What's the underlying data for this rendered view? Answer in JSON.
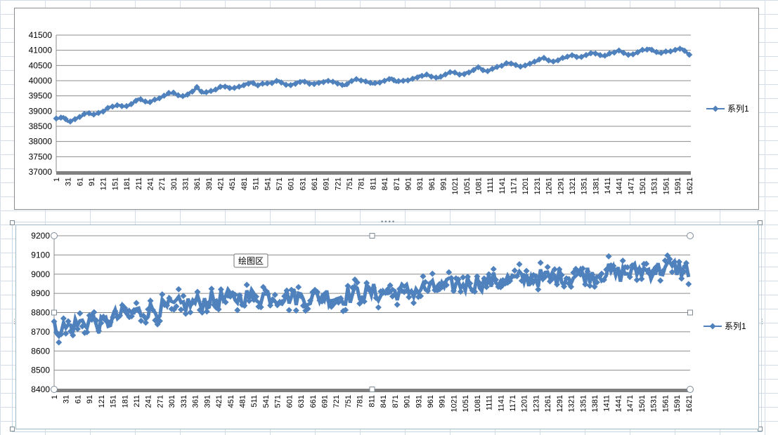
{
  "sheet": {
    "grid_color": "#d6dde8"
  },
  "tooltip": {
    "text": "绘图区"
  },
  "chart_data": [
    {
      "type": "line",
      "title": "",
      "xlabel": "",
      "ylabel": "",
      "x_tick_labels": [
        "1",
        "31",
        "61",
        "91",
        "121",
        "151",
        "181",
        "211",
        "241",
        "271",
        "301",
        "331",
        "361",
        "391",
        "421",
        "451",
        "481",
        "511",
        "541",
        "571",
        "601",
        "631",
        "661",
        "691",
        "721",
        "751",
        "781",
        "811",
        "841",
        "871",
        "901",
        "931",
        "961",
        "991",
        "1021",
        "1051",
        "1081",
        "1111",
        "1141",
        "1171",
        "1201",
        "1231",
        "1261",
        "1291",
        "1321",
        "1351",
        "1381",
        "1411",
        "1441",
        "1471",
        "1501",
        "1531",
        "1561",
        "1591",
        "1621"
      ],
      "ylim": [
        37000,
        41500
      ],
      "y_ticks": [
        37000,
        37500,
        38000,
        38500,
        39000,
        39500,
        40000,
        40500,
        41000,
        41500
      ],
      "grid": true,
      "legend_position": "right",
      "marker": "diamond",
      "series_color": "#4f81bd",
      "series": [
        {
          "name": "系列1",
          "points": [
            [
              1,
              38750
            ],
            [
              20,
              38800
            ],
            [
              31,
              38650
            ],
            [
              45,
              38700
            ],
            [
              61,
              38800
            ],
            [
              80,
              38950
            ],
            [
              91,
              38900
            ],
            [
              105,
              38900
            ],
            [
              121,
              39000
            ],
            [
              140,
              39150
            ],
            [
              160,
              39180
            ],
            [
              181,
              39150
            ],
            [
              200,
              39300
            ],
            [
              211,
              39400
            ],
            [
              230,
              39300
            ],
            [
              241,
              39300
            ],
            [
              260,
              39400
            ],
            [
              271,
              39450
            ],
            [
              290,
              39600
            ],
            [
              301,
              39600
            ],
            [
              315,
              39500
            ],
            [
              331,
              39500
            ],
            [
              350,
              39650
            ],
            [
              361,
              39800
            ],
            [
              375,
              39600
            ],
            [
              391,
              39650
            ],
            [
              410,
              39700
            ],
            [
              421,
              39800
            ],
            [
              440,
              39800
            ],
            [
              451,
              39750
            ],
            [
              470,
              39800
            ],
            [
              481,
              39850
            ],
            [
              500,
              39950
            ],
            [
              511,
              39850
            ],
            [
              530,
              39900
            ],
            [
              541,
              39900
            ],
            [
              560,
              39950
            ],
            [
              571,
              40000
            ],
            [
              590,
              39850
            ],
            [
              601,
              39850
            ],
            [
              620,
              39950
            ],
            [
              631,
              40000
            ],
            [
              650,
              39900
            ],
            [
              661,
              39900
            ],
            [
              680,
              39950
            ],
            [
              691,
              40000
            ],
            [
              710,
              39950
            ],
            [
              721,
              39900
            ],
            [
              740,
              39850
            ],
            [
              751,
              39950
            ],
            [
              770,
              40050
            ],
            [
              781,
              40000
            ],
            [
              800,
              39950
            ],
            [
              811,
              39900
            ],
            [
              830,
              39950
            ],
            [
              841,
              40000
            ],
            [
              860,
              40100
            ],
            [
              871,
              39950
            ],
            [
              890,
              40000
            ],
            [
              901,
              40000
            ],
            [
              920,
              40100
            ],
            [
              931,
              40150
            ],
            [
              950,
              40200
            ],
            [
              961,
              40150
            ],
            [
              980,
              40100
            ],
            [
              991,
              40150
            ],
            [
              1010,
              40300
            ],
            [
              1021,
              40250
            ],
            [
              1040,
              40200
            ],
            [
              1051,
              40250
            ],
            [
              1070,
              40350
            ],
            [
              1081,
              40450
            ],
            [
              1100,
              40300
            ],
            [
              1111,
              40350
            ],
            [
              1130,
              40450
            ],
            [
              1141,
              40500
            ],
            [
              1160,
              40600
            ],
            [
              1171,
              40550
            ],
            [
              1190,
              40450
            ],
            [
              1201,
              40500
            ],
            [
              1220,
              40600
            ],
            [
              1231,
              40650
            ],
            [
              1250,
              40750
            ],
            [
              1261,
              40650
            ],
            [
              1280,
              40650
            ],
            [
              1291,
              40700
            ],
            [
              1310,
              40800
            ],
            [
              1321,
              40850
            ],
            [
              1340,
              40750
            ],
            [
              1351,
              40800
            ],
            [
              1370,
              40900
            ],
            [
              1381,
              40900
            ],
            [
              1400,
              40800
            ],
            [
              1411,
              40850
            ],
            [
              1430,
              40950
            ],
            [
              1441,
              41000
            ],
            [
              1460,
              40850
            ],
            [
              1471,
              40850
            ],
            [
              1490,
              40950
            ],
            [
              1501,
              41000
            ],
            [
              1520,
              41050
            ],
            [
              1531,
              40950
            ],
            [
              1550,
              40900
            ],
            [
              1561,
              40950
            ],
            [
              1580,
              41000
            ],
            [
              1591,
              41050
            ],
            [
              1605,
              41050
            ],
            [
              1621,
              40850
            ]
          ]
        }
      ]
    },
    {
      "type": "line",
      "title": "",
      "xlabel": "",
      "ylabel": "",
      "x_tick_labels": [
        "1",
        "31",
        "61",
        "91",
        "121",
        "151",
        "181",
        "211",
        "241",
        "271",
        "301",
        "331",
        "361",
        "391",
        "421",
        "451",
        "481",
        "511",
        "541",
        "571",
        "601",
        "631",
        "661",
        "691",
        "721",
        "751",
        "781",
        "811",
        "841",
        "871",
        "901",
        "931",
        "961",
        "991",
        "1021",
        "1051",
        "1081",
        "1111",
        "1141",
        "1171",
        "1201",
        "1231",
        "1261",
        "1291",
        "1321",
        "1351",
        "1381",
        "1411",
        "1441",
        "1471",
        "1501",
        "1531",
        "1561",
        "1591",
        "1621"
      ],
      "ylim": [
        8400,
        9200
      ],
      "y_ticks": [
        8400,
        8500,
        8600,
        8700,
        8800,
        8900,
        9000,
        9100,
        9200
      ],
      "grid": true,
      "legend_position": "right",
      "marker": "diamond",
      "series_color": "#4f81bd",
      "series": [
        {
          "name": "系列1",
          "points": [
            [
              1,
              8720
            ],
            [
              31,
              8720
            ],
            [
              61,
              8740
            ],
            [
              91,
              8760
            ],
            [
              121,
              8730
            ],
            [
              151,
              8770
            ],
            [
              181,
              8790
            ],
            [
              211,
              8800
            ],
            [
              241,
              8810
            ],
            [
              271,
              8820
            ],
            [
              301,
              8830
            ],
            [
              331,
              8840
            ],
            [
              361,
              8850
            ],
            [
              391,
              8860
            ],
            [
              421,
              8870
            ],
            [
              451,
              8875
            ],
            [
              481,
              8880
            ],
            [
              511,
              8885
            ],
            [
              541,
              8890
            ],
            [
              571,
              8880
            ],
            [
              601,
              8885
            ],
            [
              631,
              8880
            ],
            [
              661,
              8875
            ],
            [
              691,
              8890
            ],
            [
              721,
              8880
            ],
            [
              751,
              8890
            ],
            [
              781,
              8900
            ],
            [
              811,
              8905
            ],
            [
              841,
              8900
            ],
            [
              871,
              8910
            ],
            [
              901,
              8910
            ],
            [
              931,
              8920
            ],
            [
              961,
              8920
            ],
            [
              991,
              8925
            ],
            [
              1021,
              8940
            ],
            [
              1051,
              8950
            ],
            [
              1081,
              8960
            ],
            [
              1111,
              8960
            ],
            [
              1141,
              8970
            ],
            [
              1171,
              8970
            ],
            [
              1201,
              8975
            ],
            [
              1231,
              8980
            ],
            [
              1261,
              8980
            ],
            [
              1291,
              8990
            ],
            [
              1321,
              8990
            ],
            [
              1351,
              9000
            ],
            [
              1381,
              9000
            ],
            [
              1411,
              9010
            ],
            [
              1441,
              9000
            ],
            [
              1471,
              9010
            ],
            [
              1501,
              9020
            ],
            [
              1531,
              9020
            ],
            [
              1561,
              9030
            ],
            [
              1591,
              9030
            ],
            [
              1621,
              9020
            ]
          ],
          "noise_band": 60
        }
      ]
    }
  ]
}
